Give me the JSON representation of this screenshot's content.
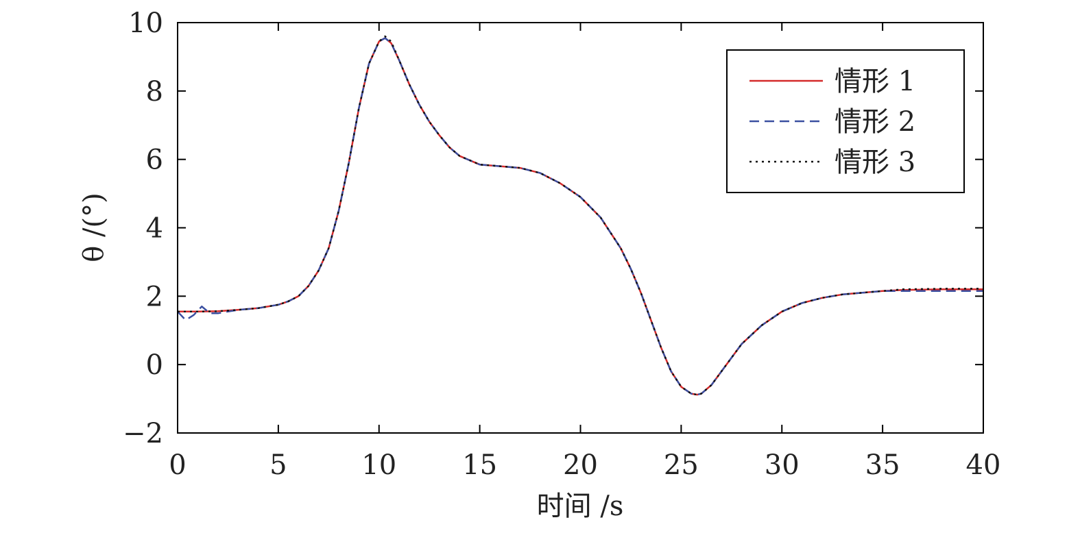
{
  "chart_data": {
    "type": "line",
    "xlabel": "时间 /s",
    "ylabel": "θ /(°)",
    "xlim": [
      0,
      40
    ],
    "ylim": [
      -2,
      10
    ],
    "xticks": [
      0,
      5,
      10,
      15,
      20,
      25,
      30,
      35,
      40
    ],
    "yticks": [
      -2,
      0,
      2,
      4,
      6,
      8,
      10
    ],
    "xtick_labels": [
      "0",
      "5",
      "10",
      "15",
      "20",
      "25",
      "30",
      "35",
      "40"
    ],
    "ytick_labels": [
      "−2",
      "0",
      "2",
      "4",
      "6",
      "8",
      "10"
    ],
    "grid": false,
    "legend_position": "top-right",
    "series": [
      {
        "name": "情形 1",
        "color": "#d42a2a",
        "style": "solid",
        "x": [
          0,
          1,
          2,
          3,
          4,
          5,
          5.5,
          6,
          6.5,
          7,
          7.5,
          8,
          8.5,
          9,
          9.5,
          10,
          10.3,
          10.6,
          11,
          11.5,
          12,
          12.5,
          13,
          13.5,
          14,
          15,
          16,
          17,
          18,
          19,
          20,
          21,
          22,
          22.5,
          23,
          23.5,
          24,
          24.5,
          25,
          25.5,
          25.8,
          26,
          26.5,
          27,
          28,
          29,
          30,
          31,
          32,
          33,
          34,
          35,
          36,
          38,
          40
        ],
        "y": [
          1.55,
          1.55,
          1.56,
          1.6,
          1.65,
          1.75,
          1.85,
          2.0,
          2.3,
          2.75,
          3.4,
          4.5,
          5.9,
          7.5,
          8.8,
          9.45,
          9.55,
          9.4,
          8.9,
          8.2,
          7.6,
          7.1,
          6.7,
          6.35,
          6.1,
          5.85,
          5.8,
          5.75,
          5.6,
          5.3,
          4.9,
          4.3,
          3.4,
          2.8,
          2.1,
          1.3,
          0.5,
          -0.2,
          -0.65,
          -0.85,
          -0.88,
          -0.85,
          -0.6,
          -0.2,
          0.6,
          1.15,
          1.55,
          1.8,
          1.95,
          2.05,
          2.1,
          2.15,
          2.18,
          2.2,
          2.2
        ]
      },
      {
        "name": "情形 2",
        "color": "#3a4fa0",
        "style": "dashed",
        "x": [
          0,
          0.4,
          0.8,
          1.2,
          1.6,
          2,
          3,
          4,
          5,
          5.5,
          6,
          6.5,
          7,
          7.5,
          8,
          8.5,
          9,
          9.5,
          10,
          10.3,
          10.6,
          11,
          11.5,
          12,
          12.5,
          13,
          13.5,
          14,
          15,
          16,
          17,
          18,
          19,
          20,
          21,
          22,
          22.5,
          23,
          23.5,
          24,
          24.5,
          25,
          25.5,
          25.8,
          26,
          26.5,
          27,
          28,
          29,
          30,
          31,
          32,
          33,
          34,
          35,
          36,
          38,
          40
        ],
        "y": [
          1.55,
          1.3,
          1.45,
          1.7,
          1.5,
          1.5,
          1.6,
          1.65,
          1.75,
          1.85,
          2.0,
          2.3,
          2.75,
          3.4,
          4.5,
          5.9,
          7.5,
          8.8,
          9.45,
          9.55,
          9.4,
          8.9,
          8.2,
          7.6,
          7.1,
          6.7,
          6.35,
          6.1,
          5.85,
          5.8,
          5.75,
          5.6,
          5.3,
          4.9,
          4.3,
          3.4,
          2.8,
          2.1,
          1.3,
          0.5,
          -0.2,
          -0.65,
          -0.85,
          -0.88,
          -0.85,
          -0.6,
          -0.2,
          0.6,
          1.15,
          1.55,
          1.8,
          1.95,
          2.05,
          2.1,
          2.15,
          2.15,
          2.15,
          2.15
        ]
      },
      {
        "name": "情形 3",
        "color": "#111111",
        "style": "dotted",
        "x": [
          0,
          1,
          2,
          3,
          4,
          5,
          5.5,
          6,
          6.5,
          7,
          7.5,
          8,
          8.5,
          9,
          9.5,
          10,
          10.3,
          10.6,
          11,
          11.5,
          12,
          12.5,
          13,
          13.5,
          14,
          15,
          16,
          17,
          18,
          19,
          20,
          21,
          22,
          22.5,
          23,
          23.5,
          24,
          24.5,
          25,
          25.5,
          25.8,
          26,
          26.5,
          27,
          28,
          29,
          30,
          31,
          32,
          33,
          34,
          35,
          36,
          38,
          40
        ],
        "y": [
          1.55,
          1.55,
          1.56,
          1.6,
          1.65,
          1.75,
          1.85,
          2.0,
          2.3,
          2.75,
          3.4,
          4.5,
          5.9,
          7.5,
          8.8,
          9.45,
          9.6,
          9.45,
          8.9,
          8.2,
          7.6,
          7.1,
          6.7,
          6.35,
          6.1,
          5.85,
          5.8,
          5.75,
          5.6,
          5.3,
          4.9,
          4.3,
          3.4,
          2.8,
          2.1,
          1.3,
          0.5,
          -0.2,
          -0.65,
          -0.85,
          -0.88,
          -0.85,
          -0.6,
          -0.2,
          0.6,
          1.15,
          1.55,
          1.8,
          1.95,
          2.05,
          2.1,
          2.15,
          2.2,
          2.22,
          2.22
        ]
      }
    ]
  }
}
